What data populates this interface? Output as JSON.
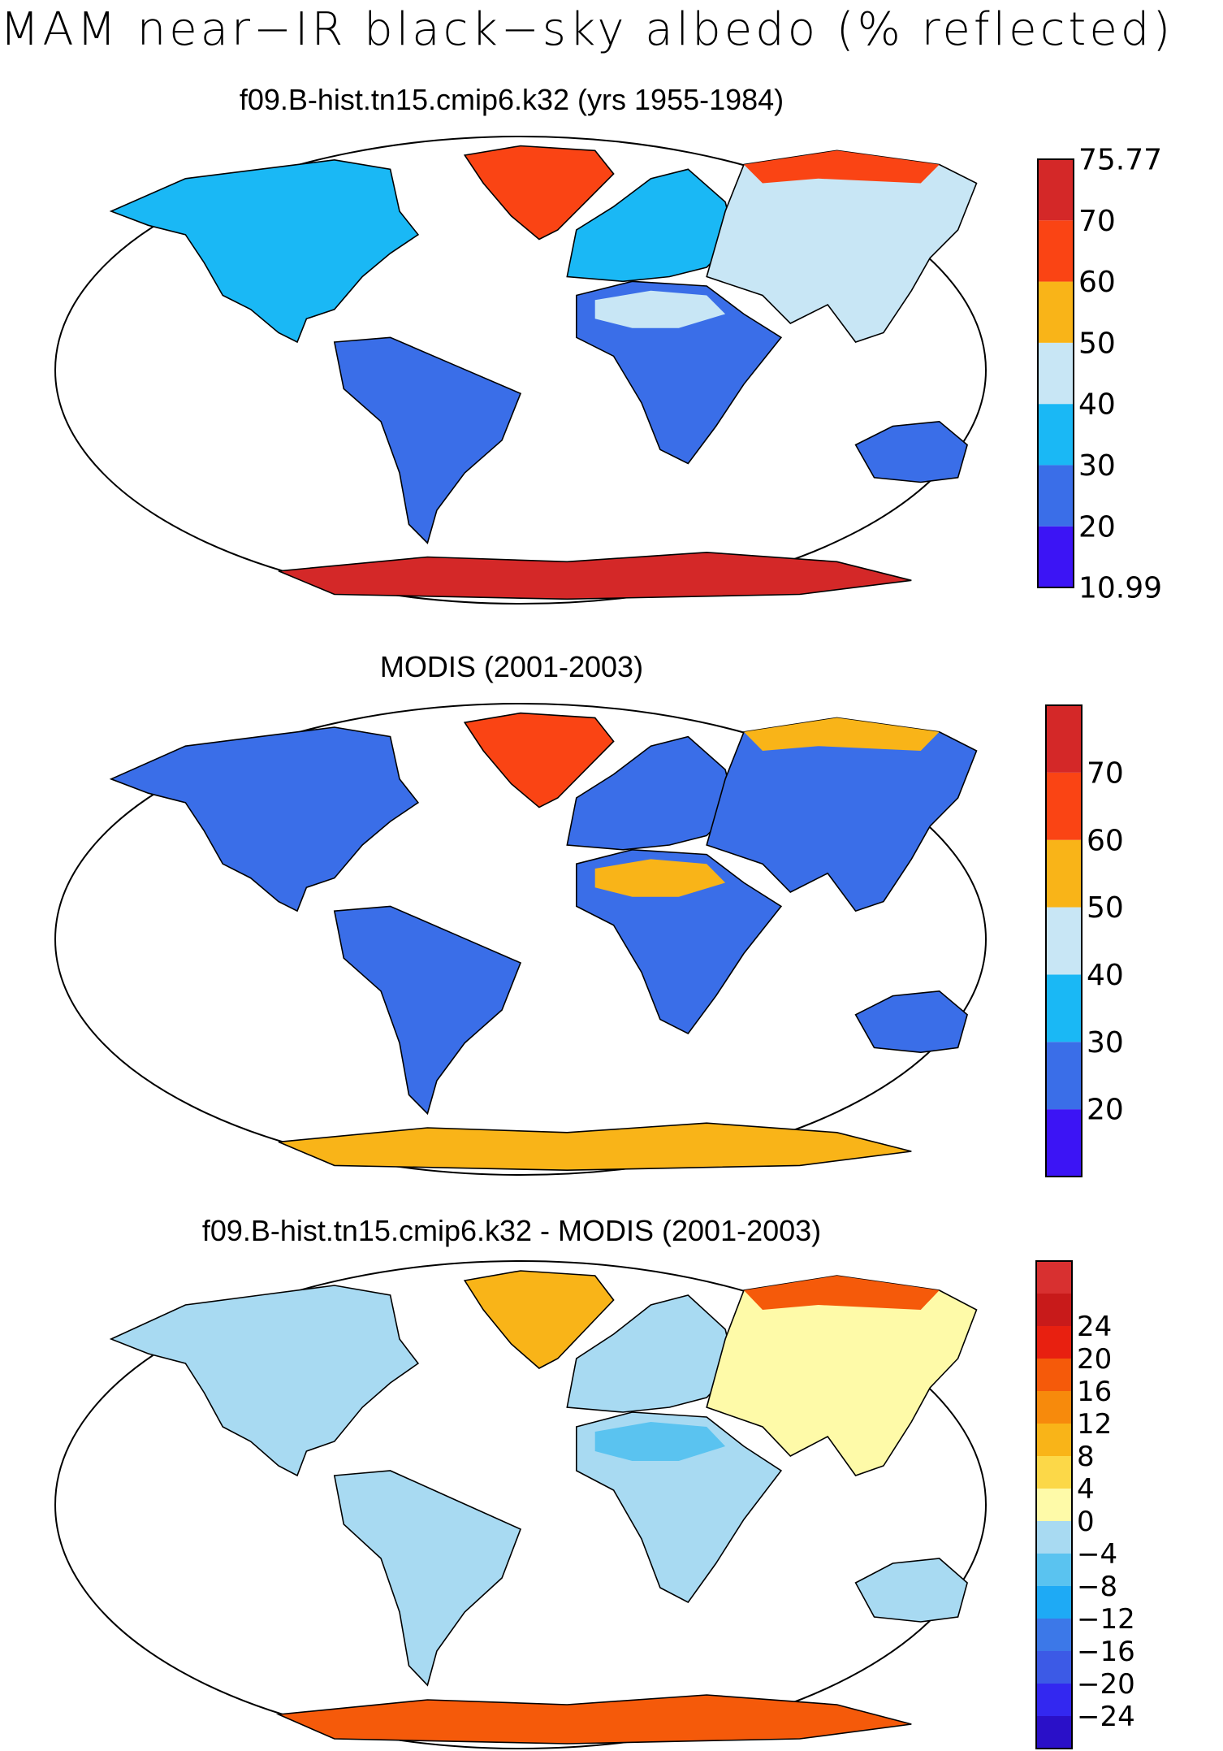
{
  "title": "MAM near−IR black−sky albedo (% reflected)",
  "colors": {
    "land_outline": "#000000",
    "ocean": "#ffffff",
    "abs_scale": [
      "#3c14f5",
      "#3a6ee8",
      "#1ab8f5",
      "#c8e6f5",
      "#f9b418",
      "#fa4414",
      "#d42828"
    ],
    "diff_scale": [
      "#2a10c8",
      "#3328f0",
      "#3c5ae6",
      "#3c78e8",
      "#1eaaf5",
      "#5ac3f0",
      "#a8daf2",
      "#fefaa8",
      "#fcd848",
      "#f9b418",
      "#f78a0c",
      "#f55a0a",
      "#e82010",
      "#c81a1a",
      "#d83030"
    ]
  },
  "panels": [
    {
      "id": "model",
      "title": "f09.B-hist.tn15.cmip6.k32 (yrs 1955-1984)",
      "colorbar": {
        "labels": [
          "75.77",
          "70",
          "60",
          "50",
          "40",
          "30",
          "20",
          "10.99"
        ]
      },
      "fills": {
        "na": 2,
        "sa": 1,
        "af": 1,
        "eu": 2,
        "as": 3,
        "au": 1,
        "gr": 5,
        "ant": 6,
        "sahara": 3,
        "arctic": 5
      }
    },
    {
      "id": "modis",
      "title": "MODIS (2001-2003)",
      "colorbar": {
        "labels": [
          "70",
          "60",
          "50",
          "40",
          "30",
          "20"
        ]
      },
      "fills": {
        "na": 1,
        "sa": 1,
        "af": 1,
        "eu": 1,
        "as": 1,
        "au": 1,
        "gr": 5,
        "ant": 4,
        "sahara": 4,
        "arctic": 4
      }
    },
    {
      "id": "diff",
      "title": "f09.B-hist.tn15.cmip6.k32 - MODIS (2001-2003)",
      "colorbar": {
        "labels": [
          "24",
          "20",
          "16",
          "12",
          "8",
          "4",
          "0",
          "−4",
          "−8",
          "−12",
          "−16",
          "−20",
          "−24"
        ]
      },
      "fills": {
        "na": 6,
        "sa": 6,
        "af": 6,
        "eu": 6,
        "as": 7,
        "au": 6,
        "gr": 9,
        "ant": 11,
        "sahara": 5,
        "arctic": 11
      }
    }
  ]
}
